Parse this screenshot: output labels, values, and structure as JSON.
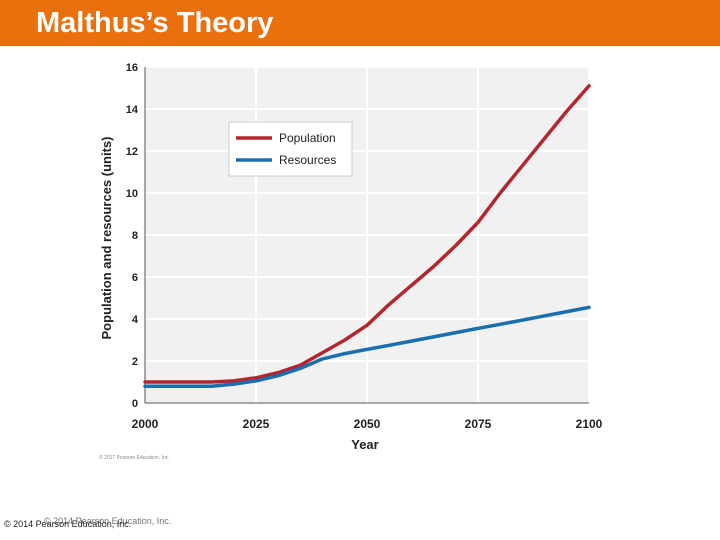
{
  "header": {
    "title": "Malthus’s Theory"
  },
  "chart_data": {
    "type": "line",
    "title": "",
    "xlabel": "Year",
    "ylabel": "Population and resources (units)",
    "xlim": [
      2000,
      2100
    ],
    "ylim": [
      0,
      16
    ],
    "x_ticks": [
      2000,
      2025,
      2050,
      2075,
      2100
    ],
    "y_ticks": [
      0,
      2,
      4,
      6,
      8,
      10,
      12,
      14,
      16
    ],
    "grid": true,
    "legend_position": "top-left",
    "series": [
      {
        "name": "Population",
        "color": "#b5252f",
        "x": [
          2000,
          2005,
          2010,
          2015,
          2020,
          2025,
          2030,
          2035,
          2040,
          2045,
          2050,
          2055,
          2060,
          2065,
          2070,
          2075,
          2080,
          2085,
          2090,
          2095,
          2100
        ],
        "y": [
          1.0,
          1.0,
          1.0,
          1.0,
          1.05,
          1.2,
          1.45,
          1.8,
          2.4,
          3.0,
          3.7,
          4.7,
          5.6,
          6.5,
          7.5,
          8.6,
          10.0,
          11.3,
          12.6,
          13.9,
          15.1
        ]
      },
      {
        "name": "Resources",
        "color": "#1b6fae",
        "x": [
          2000,
          2005,
          2010,
          2015,
          2020,
          2025,
          2030,
          2035,
          2040,
          2045,
          2050,
          2055,
          2060,
          2065,
          2070,
          2075,
          2080,
          2085,
          2090,
          2095,
          2100
        ],
        "y": [
          0.8,
          0.8,
          0.8,
          0.8,
          0.9,
          1.05,
          1.3,
          1.65,
          2.1,
          2.35,
          2.55,
          2.75,
          2.95,
          3.15,
          3.35,
          3.55,
          3.75,
          3.95,
          4.15,
          4.35,
          4.55
        ]
      }
    ]
  },
  "chart_credit": "© 2017 Pearson Education, Inc.",
  "footer": {
    "copyright": "© 2014 Pearson Education, Inc.",
    "copyright_overlap": "© 2014 Pearson Education, Inc."
  }
}
